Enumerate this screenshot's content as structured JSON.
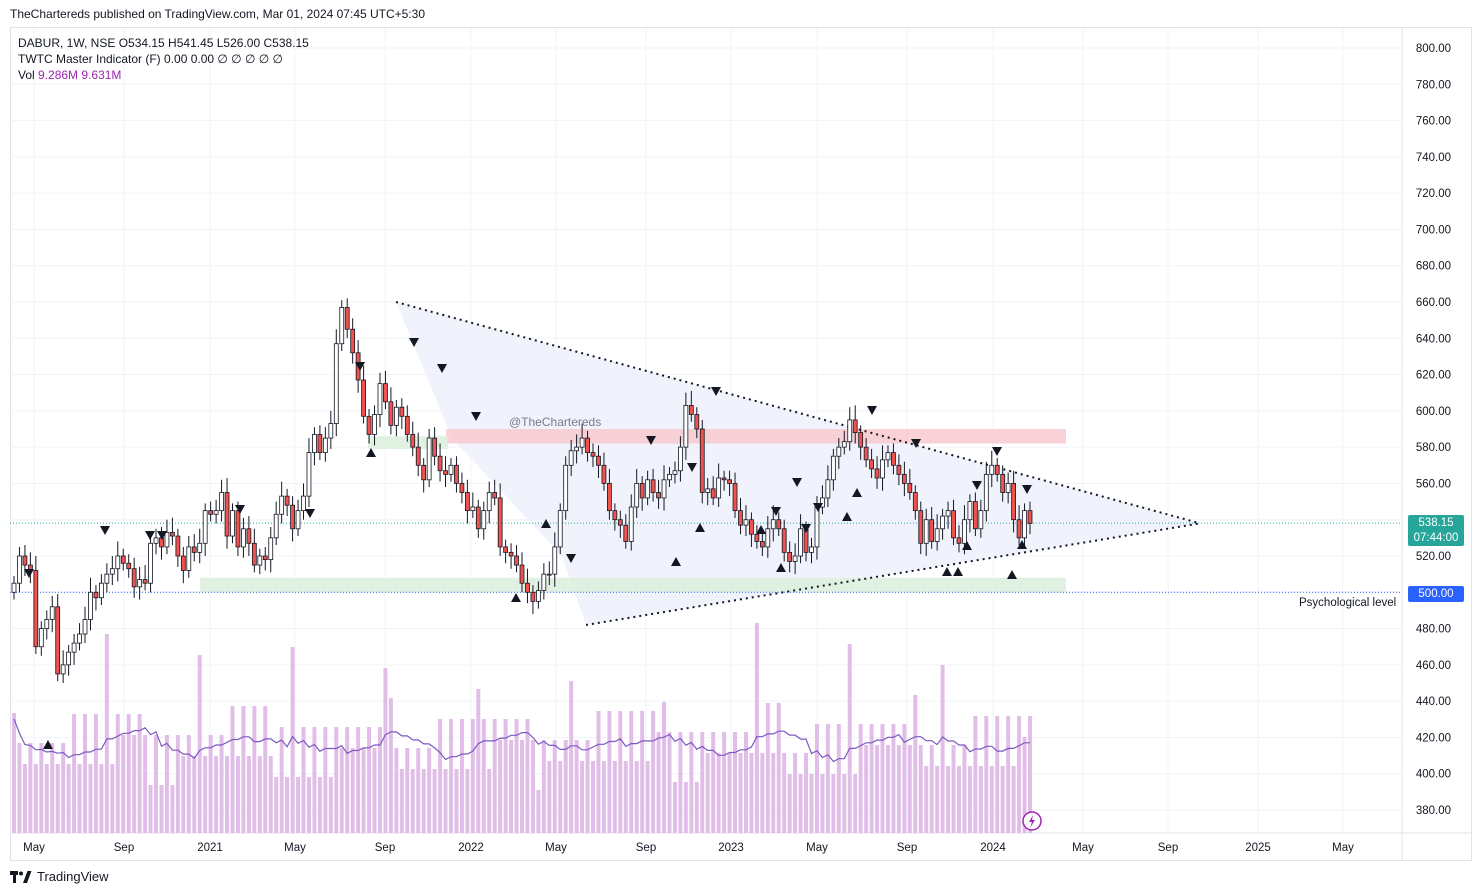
{
  "header": {
    "published": "TheChartereds published on TradingView.com, Mar 01, 2024 07:45 UTC+5:30"
  },
  "legend": {
    "symbol_line": "DABUR, 1W, NSE  O534.15  H541.45  L526.00  C538.15",
    "indicator_line": "TWTC Master Indicator (F)  0.00  0.00  ∅  ∅  ∅  ∅  ∅",
    "vol_label": "Vol",
    "vol_value_1": "9.286M",
    "vol_value_2": "9.631M"
  },
  "watermark_text": "@TheChartereds",
  "psychological_label": "Psychological level",
  "price_tags": {
    "last_price": "538.15",
    "countdown": "07:44:00",
    "level_500": "500.00"
  },
  "footer": {
    "brand": "TradingView"
  },
  "colors": {
    "up": "#26a69a",
    "down": "#ef5350",
    "body_up": "#ffffff",
    "wick": "#131722",
    "volume": "#e1bee7",
    "volume_ma": "#7e57c2",
    "resistance_zone": "#f8c9cf",
    "support_zone": "#dcefdc",
    "triangle_fill": "#eef0fb",
    "price_tag_bg": "#26a69a",
    "level_tag_bg": "#2962ff"
  },
  "chart_data": {
    "type": "candlestick",
    "symbol": "DABUR",
    "timeframe": "1W",
    "exchange": "NSE",
    "y_axis": {
      "range": [
        370,
        810
      ],
      "ticks": [
        "800.00",
        "780.00",
        "760.00",
        "740.00",
        "720.00",
        "700.00",
        "680.00",
        "660.00",
        "640.00",
        "620.00",
        "600.00",
        "580.00",
        "560.00",
        "540.00",
        "520.00",
        "500.00",
        "480.00",
        "460.00",
        "440.00",
        "420.00",
        "400.00",
        "380.00"
      ]
    },
    "x_axis": {
      "labels": [
        "May",
        "Sep",
        "2021",
        "May",
        "Sep",
        "2022",
        "May",
        "Sep",
        "2023",
        "May",
        "Sep",
        "2024",
        "May",
        "Sep",
        "2025",
        "May"
      ]
    },
    "weekly_closes": [
      505,
      520,
      515,
      512,
      470,
      480,
      485,
      492,
      455,
      460,
      467,
      472,
      477,
      485,
      500,
      497,
      505,
      510,
      513,
      520,
      516,
      513,
      503,
      507,
      505,
      527,
      530,
      525,
      533,
      531,
      520,
      512,
      525,
      522,
      527,
      545,
      543,
      545,
      555,
      531,
      545,
      525,
      535,
      527,
      515,
      520,
      518,
      530,
      543,
      553,
      548,
      535,
      545,
      553,
      577,
      587,
      577,
      585,
      593,
      637,
      657,
      645,
      632,
      617,
      597,
      587,
      598,
      615,
      605,
      592,
      602,
      597,
      587,
      580,
      570,
      562,
      585,
      575,
      567,
      565,
      570,
      560,
      555,
      545,
      547,
      535,
      545,
      555,
      552,
      525,
      522,
      520,
      515,
      505,
      500,
      495,
      501,
      510,
      510,
      525,
      545,
      570,
      578,
      580,
      585,
      577,
      575,
      570,
      560,
      545,
      540,
      537,
      528,
      547,
      560,
      552,
      562,
      555,
      552,
      562,
      565,
      567,
      580,
      603,
      598,
      590,
      555,
      557,
      552,
      563,
      562,
      560,
      545,
      537,
      540,
      532,
      528,
      525,
      535,
      540,
      535,
      522,
      517,
      520,
      535,
      522,
      525,
      547,
      552,
      562,
      575,
      580,
      583,
      595,
      588,
      580,
      573,
      568,
      563,
      573,
      577,
      570,
      565,
      560,
      555,
      545,
      527,
      540,
      528,
      535,
      542,
      545,
      530,
      527,
      540,
      550,
      535,
      545,
      565,
      570,
      565,
      555,
      560,
      540,
      530,
      545,
      538
    ],
    "triangle": {
      "upper_line": {
        "from": "660 (Sep 2021)",
        "to": "538 (apex, Oct 2024)"
      },
      "lower_line": {
        "from": "482 (Jun 2022)",
        "to": "538 (apex, Oct 2024)"
      }
    },
    "zones": [
      {
        "type": "resistance",
        "low": 582,
        "high": 590
      },
      {
        "type": "support",
        "low": 500,
        "high": 508
      }
    ],
    "levels": [
      {
        "price": 500,
        "label": "Psychological level"
      },
      {
        "price": 538.15
      }
    ],
    "volume": {
      "latest": "9.286M",
      "ma": "9.631M"
    }
  }
}
